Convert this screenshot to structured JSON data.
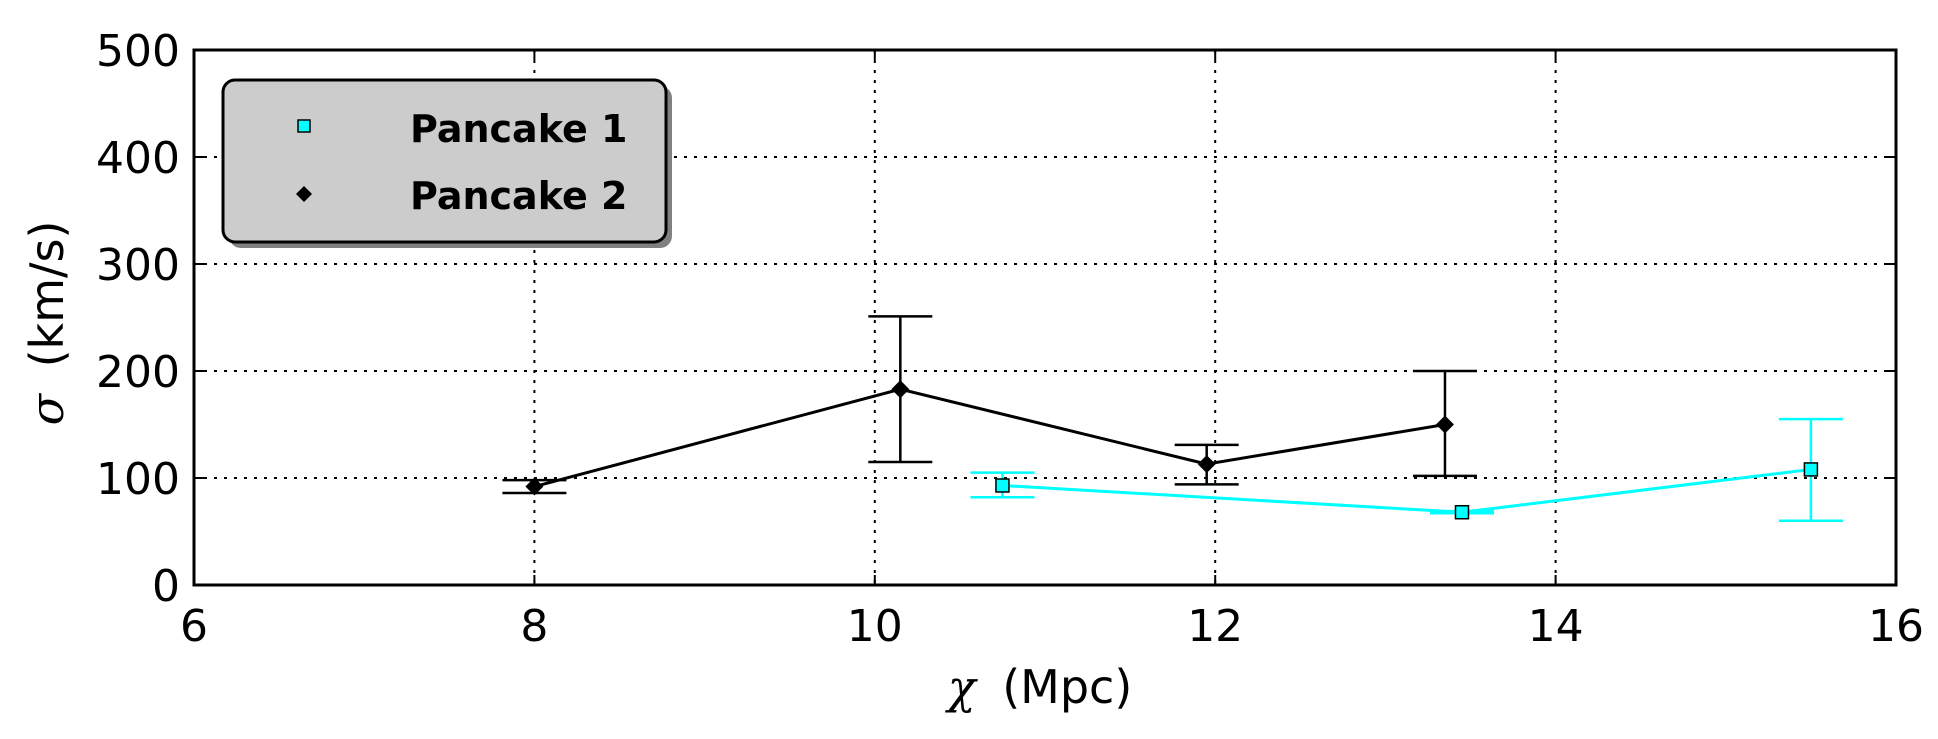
{
  "chart_data": {
    "type": "line",
    "title": "",
    "xlabel_symbol": "χ",
    "xlabel_unit": "(Mpc)",
    "ylabel_symbol": "σ",
    "ylabel_unit": "(km/s)",
    "xlim": [
      6,
      16
    ],
    "ylim": [
      0,
      500
    ],
    "xticks": [
      6,
      8,
      10,
      12,
      14,
      16
    ],
    "yticks": [
      0,
      100,
      200,
      300,
      400,
      500
    ],
    "grid": true,
    "legend_position": "top-left",
    "series": [
      {
        "name": "Pancake 1",
        "color": "#00ffff",
        "marker": "square",
        "x": [
          10.75,
          13.45,
          15.5
        ],
        "y": [
          93,
          68,
          108
        ],
        "err_low": [
          82,
          67,
          60
        ],
        "err_high": [
          105,
          69,
          155
        ]
      },
      {
        "name": "Pancake 2",
        "color": "#000000",
        "marker": "diamond",
        "x": [
          8.0,
          10.15,
          11.95,
          13.35
        ],
        "y": [
          92,
          183,
          113,
          150
        ],
        "err_low": [
          86,
          115,
          94,
          102
        ],
        "err_high": [
          98,
          251,
          131,
          200
        ]
      }
    ]
  }
}
